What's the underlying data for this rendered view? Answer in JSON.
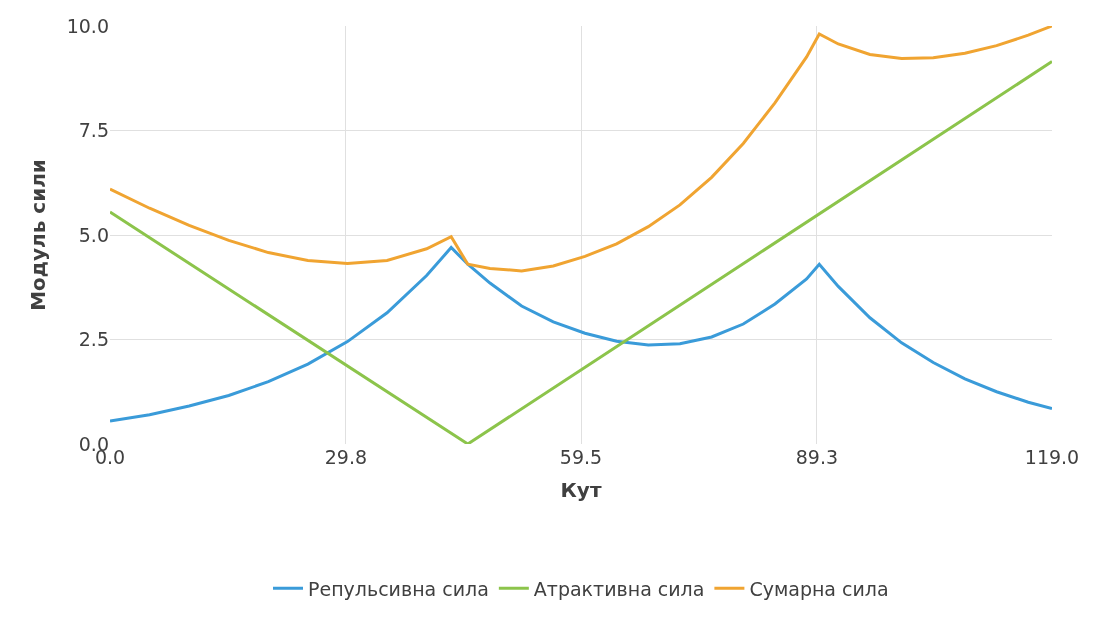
{
  "chart_data": {
    "type": "line",
    "xlabel": "Кут",
    "ylabel": "Модуль сили",
    "x": [
      0,
      5,
      10,
      15,
      20,
      25,
      30,
      35,
      40,
      43.1,
      45.2,
      48,
      52,
      56,
      60,
      64,
      68,
      72,
      76,
      80,
      84,
      88,
      89.6,
      92,
      96,
      100,
      104,
      108,
      112,
      116,
      119
    ],
    "series": [
      {
        "name": "Репульсивна сила",
        "color": "#3a9bd9",
        "values": [
          0.55,
          0.7,
          0.91,
          1.16,
          1.49,
          1.91,
          2.45,
          3.14,
          4.03,
          4.7,
          4.3,
          3.85,
          3.3,
          2.92,
          2.65,
          2.46,
          2.37,
          2.4,
          2.56,
          2.87,
          3.35,
          3.95,
          4.3,
          3.77,
          3.02,
          2.42,
          1.95,
          1.56,
          1.25,
          1.0,
          0.85
        ]
      },
      {
        "name": "Атрактивна сила",
        "color": "#8cc44b",
        "x": [
          0,
          45.2,
          119
        ],
        "values": [
          5.55,
          0,
          9.15
        ]
      },
      {
        "name": "Сумарна сила",
        "color": "#f0a431",
        "values": [
          6.1,
          5.64,
          5.23,
          4.87,
          4.58,
          4.39,
          4.32,
          4.39,
          4.67,
          4.96,
          4.3,
          4.2,
          4.14,
          4.26,
          4.49,
          4.79,
          5.2,
          5.72,
          6.38,
          7.19,
          8.16,
          9.26,
          9.81,
          9.57,
          9.32,
          9.22,
          9.24,
          9.35,
          9.53,
          9.78,
          10.0
        ]
      }
    ],
    "xlim": [
      0,
      119
    ],
    "xticks": [
      {
        "value": 0,
        "label": "0.0"
      },
      29.8,
      59.5,
      89.3,
      {
        "value": 119,
        "label": "119.0"
      }
    ],
    "ylim": [
      0,
      10
    ],
    "yticks": [
      {
        "value": 0,
        "label": "0.0"
      },
      2.5,
      {
        "value": 5,
        "label": "5.0"
      },
      7.5,
      {
        "value": 10,
        "label": "10.0"
      }
    ],
    "grid": true,
    "legend": "bottom",
    "marker": "none",
    "line_style": "solid"
  }
}
